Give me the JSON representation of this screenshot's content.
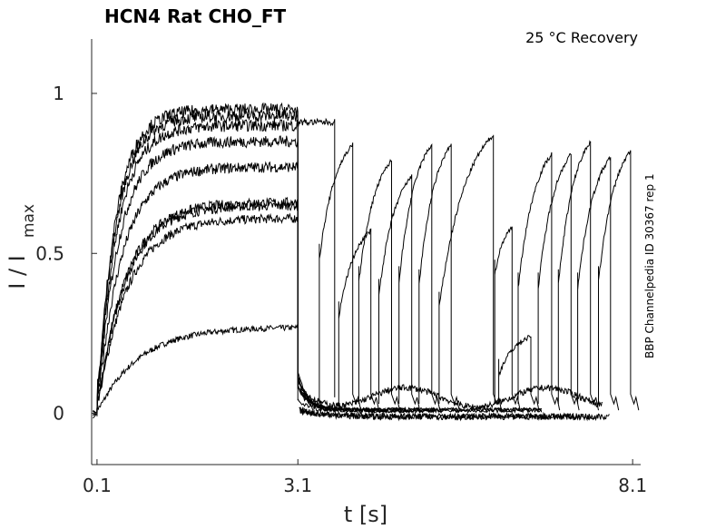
{
  "chart_data": {
    "type": "line",
    "title": "HCN4  Rat  CHO_FT",
    "annotation": "25 °C  Recovery",
    "side_label": "BBP Channelpedia ID 30367 rep 1",
    "xlabel": "t [s]",
    "ylabel": "I / I",
    "ylabel_sub": "max",
    "xlim": [
      0.02,
      8.22
    ],
    "ylim": [
      -0.16,
      1.17
    ],
    "xticks": [
      0.1,
      3.1,
      8.1
    ],
    "xtick_labels": [
      "0.1",
      "3.1",
      "8.1"
    ],
    "yticks": [
      0,
      0.5,
      1
    ],
    "ytick_labels": [
      "0",
      "0.5",
      "1"
    ],
    "line_color": "#000000",
    "activation_traces": {
      "start": 0.1,
      "end": 3.1,
      "plateaus": [
        0.27,
        0.61,
        0.65,
        0.66,
        0.77,
        0.85,
        0.9,
        0.93,
        0.95
      ]
    },
    "conditioning_tail_end": 3.55,
    "recovery_ramps": [
      {
        "t0": 3.42,
        "v0": 0.48,
        "t1": 3.92,
        "v1": 0.84
      },
      {
        "t0": 3.71,
        "v0": 0.3,
        "t1": 4.19,
        "v1": 0.57
      },
      {
        "t0": 4.01,
        "v0": 0.41,
        "t1": 4.5,
        "v1": 0.79
      },
      {
        "t0": 4.31,
        "v0": 0.37,
        "t1": 4.8,
        "v1": 0.74
      },
      {
        "t0": 4.61,
        "v0": 0.41,
        "t1": 5.1,
        "v1": 0.84
      },
      {
        "t0": 4.91,
        "v0": 0.4,
        "t1": 5.39,
        "v1": 0.84
      },
      {
        "t0": 5.21,
        "v0": 0.33,
        "t1": 6.02,
        "v1": 0.87
      },
      {
        "t0": 6.04,
        "v0": 0.43,
        "t1": 6.3,
        "v1": 0.58
      },
      {
        "t0": 6.1,
        "v0": 0.12,
        "t1": 6.58,
        "v1": 0.24
      },
      {
        "t0": 6.39,
        "v0": 0.39,
        "t1": 6.89,
        "v1": 0.81
      },
      {
        "t0": 6.69,
        "v0": 0.39,
        "t1": 7.18,
        "v1": 0.81
      },
      {
        "t0": 6.99,
        "v0": 0.4,
        "t1": 7.47,
        "v1": 0.85
      },
      {
        "t0": 7.28,
        "v0": 0.39,
        "t1": 7.77,
        "v1": 0.8
      },
      {
        "t0": 7.59,
        "v0": 0.41,
        "t1": 8.07,
        "v1": 0.82
      }
    ]
  }
}
